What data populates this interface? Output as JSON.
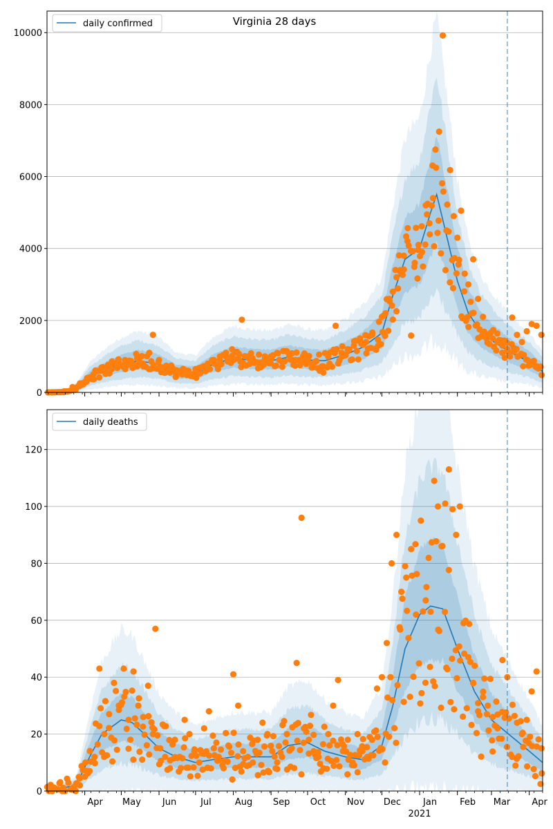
{
  "title": "Virginia 28 days",
  "colors": {
    "line": "#1f77b4",
    "points": "#ff7f0e",
    "band": "#1f77b4",
    "grid": "#b0b0b0",
    "vline": "#1f77b4"
  },
  "x_axis": {
    "start": "2020-03-01",
    "end": "2021-04-12",
    "month_labels": [
      "Apr",
      "May",
      "Jun",
      "Jul",
      "Aug",
      "Sep",
      "Oct",
      "Nov",
      "Dec",
      "Jan",
      "Feb",
      "Mar",
      "Apr"
    ],
    "month_dates": [
      "2020-04-01",
      "2020-05-01",
      "2020-06-01",
      "2020-07-01",
      "2020-08-01",
      "2020-09-01",
      "2020-10-01",
      "2020-11-01",
      "2020-12-01",
      "2021-01-01",
      "2021-02-01",
      "2021-03-01",
      "2021-04-01"
    ],
    "year_label": "2021",
    "vline_date": "2021-03-14"
  },
  "chart_data": [
    {
      "type": "line",
      "legend": "daily confirmed",
      "legend_position": "top-left",
      "grid": "horizontal",
      "ylim": [
        0,
        10600
      ],
      "yticks": [
        0,
        2000,
        4000,
        6000,
        8000,
        10000
      ],
      "ytick_labels": [
        "0",
        "2000",
        "4000",
        "6000",
        "8000",
        "10000"
      ],
      "model": {
        "x": [
          "2020-03-01",
          "2020-03-15",
          "2020-03-25",
          "2020-04-05",
          "2020-04-20",
          "2020-05-01",
          "2020-05-15",
          "2020-06-01",
          "2020-06-15",
          "2020-07-01",
          "2020-07-15",
          "2020-08-01",
          "2020-08-15",
          "2020-09-01",
          "2020-09-15",
          "2020-10-01",
          "2020-10-15",
          "2020-11-01",
          "2020-11-15",
          "2020-12-01",
          "2020-12-10",
          "2020-12-20",
          "2021-01-01",
          "2021-01-10",
          "2021-01-15",
          "2021-01-20",
          "2021-02-01",
          "2021-02-10",
          "2021-02-20",
          "2021-03-01",
          "2021-03-10",
          "2021-03-20",
          "2021-04-01",
          "2021-04-12"
        ],
        "y": [
          0,
          10,
          100,
          420,
          650,
          780,
          880,
          780,
          560,
          520,
          780,
          950,
          900,
          880,
          980,
          900,
          880,
          1050,
          1250,
          1650,
          2700,
          3700,
          4000,
          5000,
          5500,
          4800,
          3100,
          2200,
          1700,
          1450,
          1250,
          1050,
          850,
          580
        ],
        "band_inner_rel": 0.3,
        "band_mid_rel": 0.6,
        "band_outer_rel": 0.9
      },
      "observed": {
        "x": [
          "2020-03-05",
          "2020-03-15",
          "2020-03-22",
          "2020-03-28",
          "2020-04-03",
          "2020-04-08",
          "2020-04-14",
          "2020-04-19",
          "2020-04-24",
          "2020-04-29",
          "2020-05-04",
          "2020-05-09",
          "2020-05-14",
          "2020-05-19",
          "2020-05-24",
          "2020-05-27",
          "2020-06-01",
          "2020-06-05",
          "2020-06-10",
          "2020-06-15",
          "2020-06-20",
          "2020-06-25",
          "2020-07-01",
          "2020-07-06",
          "2020-07-11",
          "2020-07-16",
          "2020-07-21",
          "2020-07-26",
          "2020-07-31",
          "2020-08-05",
          "2020-08-08",
          "2020-08-12",
          "2020-08-17",
          "2020-08-22",
          "2020-08-27",
          "2020-09-01",
          "2020-09-06",
          "2020-09-11",
          "2020-09-16",
          "2020-09-21",
          "2020-09-26",
          "2020-10-01",
          "2020-10-06",
          "2020-10-11",
          "2020-10-14",
          "2020-10-19",
          "2020-10-24",
          "2020-10-29",
          "2020-11-03",
          "2020-11-08",
          "2020-11-13",
          "2020-11-18",
          "2020-11-23",
          "2020-11-28",
          "2020-12-01",
          "2020-12-04",
          "2020-12-07",
          "2020-12-10",
          "2020-12-13",
          "2020-12-16",
          "2020-12-19",
          "2020-12-22",
          "2020-12-25",
          "2020-12-28",
          "2020-12-31",
          "2021-01-03",
          "2021-01-06",
          "2021-01-09",
          "2021-01-12",
          "2021-01-14",
          "2021-01-17",
          "2021-01-20",
          "2021-01-23",
          "2021-01-26",
          "2021-01-29",
          "2021-02-01",
          "2021-02-04",
          "2021-02-07",
          "2021-02-10",
          "2021-02-14",
          "2021-02-18",
          "2021-02-22",
          "2021-02-26",
          "2021-03-02",
          "2021-03-06",
          "2021-03-10",
          "2021-03-14",
          "2021-03-18",
          "2021-03-22",
          "2021-03-26",
          "2021-03-30",
          "2021-04-03",
          "2021-04-07",
          "2021-04-11"
        ],
        "y": [
          0,
          30,
          150,
          250,
          400,
          500,
          600,
          700,
          800,
          750,
          900,
          850,
          950,
          800,
          1100,
          1600,
          900,
          700,
          550,
          450,
          500,
          600,
          650,
          700,
          800,
          900,
          1000,
          1100,
          1200,
          950,
          2020,
          1000,
          900,
          1050,
          950,
          1000,
          1100,
          1150,
          1000,
          900,
          850,
          950,
          700,
          600,
          550,
          800,
          1850,
          1100,
          1200,
          1300,
          1500,
          1400,
          1600,
          1300,
          2100,
          2200,
          2600,
          2800,
          3200,
          3400,
          3800,
          4200,
          1580,
          3600,
          4100,
          3900,
          5200,
          4700,
          5400,
          6750,
          7250,
          9920,
          4500,
          6180,
          4900,
          4300,
          5050,
          3300,
          3000,
          3700,
          2600,
          2100,
          1600,
          1500,
          1400,
          1300,
          1200,
          2080,
          1600,
          1400,
          1700,
          1900,
          1850,
          1600
        ],
        "n_points": 408
      }
    },
    {
      "type": "line",
      "legend": "daily deaths",
      "legend_position": "top-left",
      "grid": "horizontal",
      "ylim": [
        0,
        134
      ],
      "yticks": [
        0,
        20,
        40,
        60,
        80,
        100,
        120
      ],
      "ytick_labels": [
        "0",
        "20",
        "40",
        "60",
        "80",
        "100",
        "120"
      ],
      "model": {
        "x": [
          "2020-03-01",
          "2020-03-25",
          "2020-04-05",
          "2020-04-15",
          "2020-05-01",
          "2020-05-10",
          "2020-05-20",
          "2020-06-01",
          "2020-06-15",
          "2020-07-01",
          "2020-07-15",
          "2020-08-01",
          "2020-08-15",
          "2020-09-01",
          "2020-09-15",
          "2020-10-01",
          "2020-10-15",
          "2020-11-01",
          "2020-11-15",
          "2020-12-01",
          "2020-12-10",
          "2020-12-20",
          "2021-01-01",
          "2021-01-10",
          "2021-01-20",
          "2021-02-01",
          "2021-02-15",
          "2021-03-01",
          "2021-03-15",
          "2021-04-01",
          "2021-04-12"
        ],
        "y": [
          0,
          2,
          12,
          20,
          25,
          24,
          20,
          15,
          12,
          10,
          11,
          12,
          12,
          12,
          16,
          17,
          14,
          12,
          11,
          16,
          30,
          50,
          62,
          65,
          64,
          50,
          35,
          25,
          20,
          14,
          10
        ],
        "band_inner_rel": 0.35,
        "band_mid_rel": 0.75,
        "band_outer_rel": 1.25
      },
      "observed": {
        "x": [
          "2020-03-05",
          "2020-03-15",
          "2020-03-22",
          "2020-03-28",
          "2020-04-01",
          "2020-04-05",
          "2020-04-09",
          "2020-04-13",
          "2020-04-17",
          "2020-04-21",
          "2020-04-25",
          "2020-04-29",
          "2020-05-03",
          "2020-05-07",
          "2020-05-11",
          "2020-05-15",
          "2020-05-19",
          "2020-05-23",
          "2020-05-27",
          "2020-05-29",
          "2020-06-02",
          "2020-06-06",
          "2020-06-10",
          "2020-06-14",
          "2020-06-18",
          "2020-06-22",
          "2020-06-26",
          "2020-06-30",
          "2020-07-04",
          "2020-07-08",
          "2020-07-12",
          "2020-07-16",
          "2020-07-20",
          "2020-07-24",
          "2020-07-28",
          "2020-08-01",
          "2020-08-05",
          "2020-08-09",
          "2020-08-13",
          "2020-08-17",
          "2020-08-21",
          "2020-08-25",
          "2020-08-29",
          "2020-09-02",
          "2020-09-06",
          "2020-09-10",
          "2020-09-14",
          "2020-09-18",
          "2020-09-22",
          "2020-09-26",
          "2020-09-28",
          "2020-10-02",
          "2020-10-06",
          "2020-10-10",
          "2020-10-14",
          "2020-10-18",
          "2020-10-22",
          "2020-10-26",
          "2020-10-30",
          "2020-11-03",
          "2020-11-07",
          "2020-11-11",
          "2020-11-15",
          "2020-11-19",
          "2020-11-23",
          "2020-11-27",
          "2020-12-01",
          "2020-12-05",
          "2020-12-09",
          "2020-12-13",
          "2020-12-17",
          "2020-12-21",
          "2020-12-25",
          "2020-12-29",
          "2021-01-02",
          "2021-01-06",
          "2021-01-10",
          "2021-01-13",
          "2021-01-16",
          "2021-01-19",
          "2021-01-22",
          "2021-01-25",
          "2021-01-28",
          "2021-01-31",
          "2021-02-03",
          "2021-02-06",
          "2021-02-10",
          "2021-02-14",
          "2021-02-18",
          "2021-02-22",
          "2021-02-26",
          "2021-03-02",
          "2021-03-06",
          "2021-03-10",
          "2021-03-14",
          "2021-03-18",
          "2021-03-22",
          "2021-03-26",
          "2021-03-30",
          "2021-04-03",
          "2021-04-07",
          "2021-04-11"
        ],
        "y": [
          0,
          0,
          1,
          2,
          5,
          7,
          12,
          43,
          20,
          27,
          38,
          30,
          43,
          25,
          42,
          30,
          26,
          37,
          20,
          57,
          15,
          12,
          8,
          18,
          12,
          25,
          20,
          14,
          10,
          22,
          28,
          15,
          12,
          8,
          16,
          41,
          30,
          14,
          12,
          10,
          18,
          24,
          20,
          14,
          10,
          12,
          20,
          15,
          45,
          96,
          22,
          18,
          14,
          12,
          8,
          20,
          30,
          39,
          14,
          18,
          10,
          20,
          14,
          12,
          18,
          36,
          40,
          52,
          80,
          90,
          70,
          75,
          85,
          62,
          95,
          67,
          63,
          109,
          100,
          86,
          101,
          113,
          99,
          90,
          100,
          59,
          47,
          38,
          28,
          33,
          30,
          26,
          22,
          46,
          40,
          12,
          24,
          20,
          25,
          35,
          42,
          15
        ],
        "n_points": 408
      }
    }
  ]
}
